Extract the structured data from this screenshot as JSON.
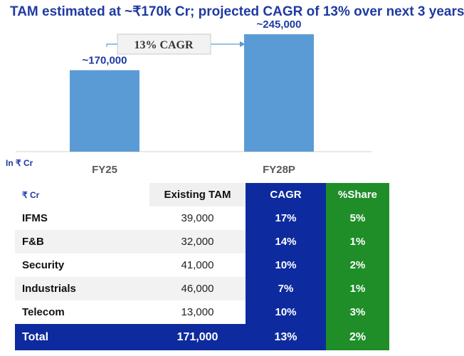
{
  "title": "TAM estimated at ~₹170k Cr; projected CAGR of 13% over next 3 years",
  "chart_data": {
    "type": "bar",
    "categories": [
      "FY25",
      "FY28P"
    ],
    "values": [
      170000,
      245000
    ],
    "data_labels": [
      "~170,000",
      "~245,000"
    ],
    "ylim": [
      0,
      260000
    ],
    "unit_label": "In ₹ Cr",
    "annotation": "13% CAGR",
    "bar_color": "#5b9bd5"
  },
  "table": {
    "headers": [
      "₹ Cr",
      "Existing TAM",
      "CAGR",
      "%Share"
    ],
    "rows": [
      {
        "segment": "IFMS",
        "tam": "39,000",
        "cagr": "17%",
        "share": "5%"
      },
      {
        "segment": "F&B",
        "tam": "32,000",
        "cagr": "14%",
        "share": "1%"
      },
      {
        "segment": "Security",
        "tam": "41,000",
        "cagr": "10%",
        "share": "2%"
      },
      {
        "segment": "Industrials",
        "tam": "46,000",
        "cagr": "7%",
        "share": "1%"
      },
      {
        "segment": "Telecom",
        "tam": "13,000",
        "cagr": "10%",
        "share": "3%"
      }
    ],
    "total": {
      "label": "Total",
      "tam": "171,000",
      "cagr": "13%",
      "share": "2%"
    }
  },
  "colors": {
    "title": "#1f3aa1",
    "cagr_col": "#0d2b9e",
    "share_col": "#1f8e29"
  }
}
